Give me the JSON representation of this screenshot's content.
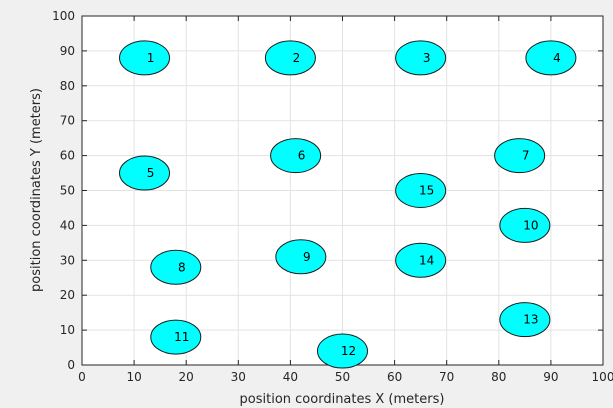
{
  "chart_data": {
    "type": "scatter",
    "title": "",
    "xlabel": "position coordinates X (meters)",
    "ylabel": "position coordinates Y (meters)",
    "xlim": [
      0,
      100
    ],
    "ylim": [
      0,
      100
    ],
    "xticks": [
      0,
      10,
      20,
      30,
      40,
      50,
      60,
      70,
      80,
      90,
      100
    ],
    "yticks": [
      0,
      10,
      20,
      30,
      40,
      50,
      60,
      70,
      80,
      90,
      100
    ],
    "grid": true,
    "marker_color": "#00ffff",
    "marker_edge_color": "#1a1a1a",
    "points": [
      {
        "label": "1",
        "x": 12,
        "y": 88
      },
      {
        "label": "2",
        "x": 40,
        "y": 88
      },
      {
        "label": "3",
        "x": 65,
        "y": 88
      },
      {
        "label": "4",
        "x": 90,
        "y": 88
      },
      {
        "label": "5",
        "x": 12,
        "y": 55
      },
      {
        "label": "6",
        "x": 41,
        "y": 60
      },
      {
        "label": "7",
        "x": 84,
        "y": 60
      },
      {
        "label": "8",
        "x": 18,
        "y": 28
      },
      {
        "label": "9",
        "x": 42,
        "y": 31
      },
      {
        "label": "10",
        "x": 85,
        "y": 40
      },
      {
        "label": "11",
        "x": 18,
        "y": 8
      },
      {
        "label": "12",
        "x": 50,
        "y": 4
      },
      {
        "label": "13",
        "x": 85,
        "y": 13
      },
      {
        "label": "14",
        "x": 65,
        "y": 30
      },
      {
        "label": "15",
        "x": 65,
        "y": 50
      }
    ]
  }
}
